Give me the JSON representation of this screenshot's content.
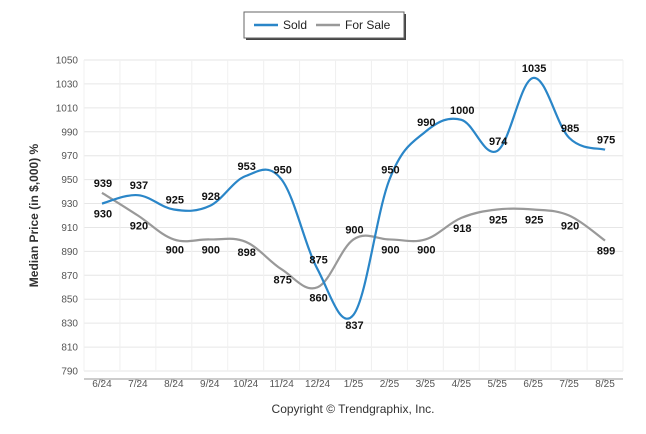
{
  "chart_data": {
    "type": "line",
    "categories": [
      "6/24",
      "7/24",
      "8/24",
      "9/24",
      "10/24",
      "11/24",
      "12/24",
      "1/25",
      "2/25",
      "3/25",
      "4/25",
      "5/25",
      "6/25",
      "7/25",
      "8/25"
    ],
    "series": [
      {
        "name": "Sold",
        "color": "#2a86c8",
        "values": [
          930,
          937,
          925,
          928,
          953,
          950,
          875,
          837,
          950,
          990,
          1000,
          974,
          1035,
          985,
          975
        ]
      },
      {
        "name": "For Sale",
        "color": "#999999",
        "values": [
          939,
          920,
          900,
          900,
          898,
          875,
          860,
          900,
          900,
          900,
          918,
          925,
          925,
          920,
          899
        ]
      }
    ],
    "ylabel": "Median Price (in $,000) %",
    "xlabel": "",
    "ylim": [
      790,
      1050
    ],
    "yticks": [
      790,
      810,
      830,
      850,
      870,
      890,
      910,
      930,
      950,
      970,
      990,
      1010,
      1030,
      1050
    ],
    "grid": true,
    "legend": "top-center",
    "footer": "Copyright © Trendgraphix, Inc."
  }
}
